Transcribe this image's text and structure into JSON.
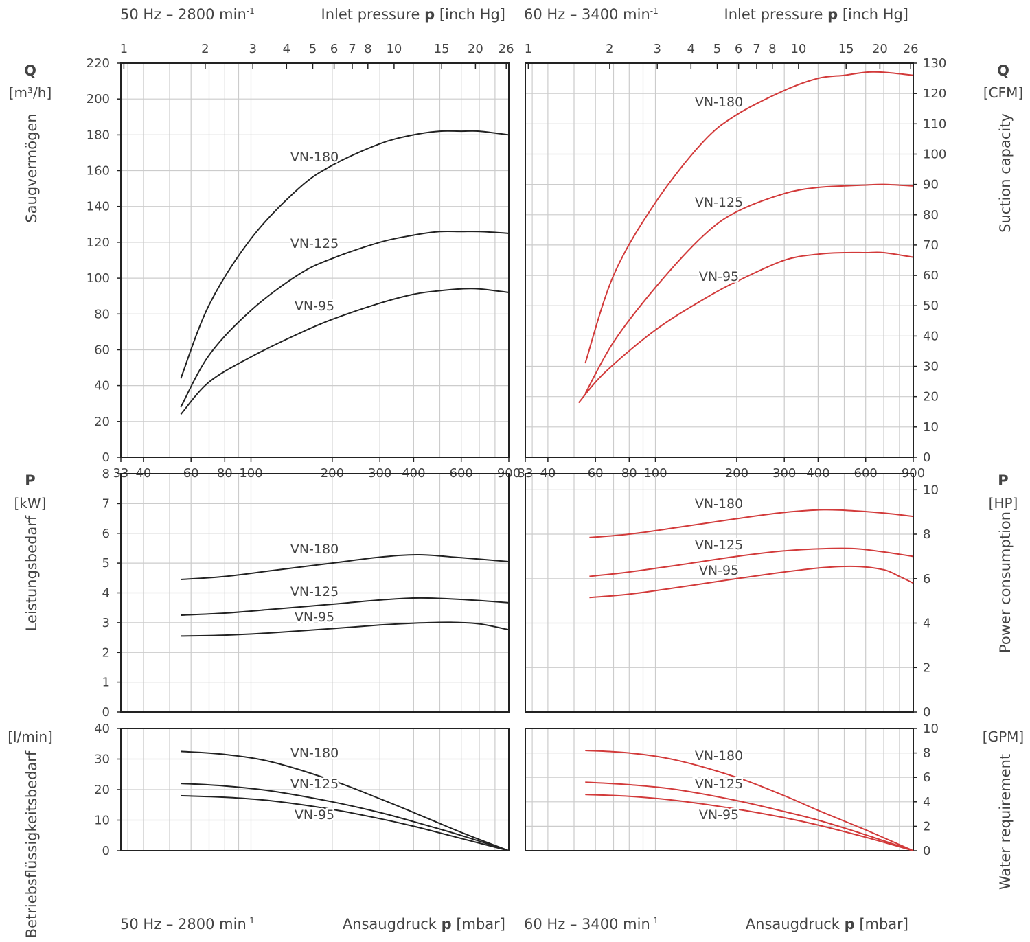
{
  "header": {
    "left_freq_main": "50 Hz – 2800 min",
    "left_freq_sup": "-1",
    "right_freq_main": "60 Hz – 3400 min",
    "right_freq_sup": "-1",
    "inlet_pressure_prefix": "Inlet pressure ",
    "inlet_pressure_symbol": "p",
    "inlet_pressure_unit": " [inch Hg]"
  },
  "footer": {
    "left_freq_main": "50 Hz – 2800 min",
    "left_freq_sup": "-1",
    "right_freq_main": "60 Hz – 3400 min",
    "right_freq_sup": "-1",
    "ansaug_prefix": "Ansaugdruck ",
    "ansaug_symbol": "p",
    "ansaug_unit": " [mbar]"
  },
  "left_axis_labels": {
    "q_symbol": "Q",
    "q_unit": "[m³/h]",
    "q_name": "Saugvermögen",
    "p_symbol": "P",
    "p_unit": "[kW]",
    "p_name": "Leistungsbedarf",
    "w_unit": "[l/min]",
    "w_name": "Betriebsflüssigkeitsbedarf"
  },
  "right_axis_labels": {
    "q_symbol": "Q",
    "q_unit": "[CFM]",
    "q_name": "Suction capacity",
    "p_symbol": "P",
    "p_unit": "[HP]",
    "p_name": "Power consumption",
    "w_unit": "[GPM]",
    "w_name": "Water requirement"
  },
  "colors": {
    "left_curves": "#222222",
    "right_curves": "#d23a3a",
    "grid": "#cccccc",
    "frame": "#222222",
    "text": "#444444"
  },
  "chart_data": [
    {
      "type": "line",
      "panel": "suction-capacity-50hz",
      "x_scale": "log",
      "x_unit": "mbar",
      "xlim": [
        33,
        900
      ],
      "top_axis_inchHg": [
        "1",
        "2",
        "3",
        "4",
        "5",
        "6",
        "7",
        "8",
        "10",
        "15",
        "20",
        "26"
      ],
      "bottom_axis_mbar": [
        "33",
        "40",
        "60",
        "80",
        "100",
        "200",
        "300",
        "400",
        "600",
        "900"
      ],
      "ylim": [
        0,
        220
      ],
      "yticks": [
        0,
        20,
        40,
        60,
        80,
        100,
        120,
        140,
        160,
        180,
        200,
        220
      ],
      "series": [
        {
          "name": "VN-180",
          "x": [
            55,
            70,
            100,
            150,
            200,
            300,
            400,
            500,
            600,
            700,
            900
          ],
          "y": [
            44,
            85,
            122,
            150,
            163,
            175,
            180,
            182,
            182,
            182,
            180
          ]
        },
        {
          "name": "VN-125",
          "x": [
            55,
            70,
            100,
            150,
            200,
            300,
            400,
            500,
            600,
            700,
            900
          ],
          "y": [
            28,
            57,
            82,
            102,
            111,
            120,
            124,
            126,
            126,
            126,
            125
          ]
        },
        {
          "name": "VN-95",
          "x": [
            55,
            70,
            100,
            150,
            200,
            300,
            400,
            500,
            600,
            700,
            900
          ],
          "y": [
            24,
            42,
            56,
            69,
            77,
            86,
            91,
            93,
            94,
            94,
            92
          ]
        }
      ]
    },
    {
      "type": "line",
      "panel": "suction-capacity-60hz",
      "x_scale": "log",
      "x_unit": "mbar",
      "xlim": [
        33,
        900
      ],
      "top_axis_inchHg": [
        "1",
        "2",
        "3",
        "4",
        "5",
        "6",
        "7",
        "8",
        "10",
        "15",
        "20",
        "26"
      ],
      "bottom_axis_mbar": [
        "33",
        "40",
        "60",
        "80",
        "100",
        "200",
        "300",
        "400",
        "600",
        "900"
      ],
      "y_unit": "CFM",
      "ylim": [
        0,
        130
      ],
      "yticks": [
        0,
        10,
        20,
        30,
        40,
        50,
        60,
        70,
        80,
        90,
        100,
        110,
        120,
        130
      ],
      "series": [
        {
          "name": "VN-180",
          "x": [
            55,
            70,
            100,
            150,
            200,
            300,
            400,
            500,
            600,
            700,
            900
          ],
          "y": [
            31,
            60,
            84,
            104,
            113,
            121,
            125,
            126,
            127,
            127,
            126
          ]
        },
        {
          "name": "VN-125",
          "x": [
            55,
            70,
            100,
            150,
            200,
            300,
            400,
            500,
            600,
            700,
            900
          ],
          "y": [
            21,
            38,
            56,
            73,
            81,
            87,
            89,
            89.5,
            89.8,
            90,
            89.5
          ]
        },
        {
          "name": "VN-95",
          "x": [
            52,
            65,
            100,
            150,
            200,
            300,
            400,
            500,
            600,
            700,
            900
          ],
          "y": [
            18,
            28,
            42,
            52,
            58,
            65,
            67,
            67.5,
            67.5,
            67.5,
            66
          ]
        }
      ]
    },
    {
      "type": "line",
      "panel": "power-consumption-50hz",
      "x_scale": "log",
      "x_unit": "mbar",
      "xlim": [
        33,
        900
      ],
      "ylim": [
        0,
        8
      ],
      "yticks": [
        0,
        1,
        2,
        3,
        4,
        5,
        6,
        7,
        8
      ],
      "series": [
        {
          "name": "VN-180",
          "x": [
            55,
            80,
            120,
            200,
            300,
            420,
            600,
            900
          ],
          "y": [
            4.45,
            4.55,
            4.75,
            5.0,
            5.2,
            5.28,
            5.18,
            5.05
          ]
        },
        {
          "name": "VN-125",
          "x": [
            55,
            80,
            120,
            200,
            300,
            420,
            600,
            900
          ],
          "y": [
            3.25,
            3.32,
            3.45,
            3.62,
            3.76,
            3.83,
            3.78,
            3.67
          ]
        },
        {
          "name": "VN-95",
          "x": [
            55,
            80,
            120,
            200,
            300,
            420,
            550,
            700,
            900
          ],
          "y": [
            2.55,
            2.58,
            2.66,
            2.8,
            2.92,
            2.99,
            3.01,
            2.96,
            2.76
          ]
        }
      ]
    },
    {
      "type": "line",
      "panel": "power-consumption-60hz",
      "x_scale": "log",
      "x_unit": "mbar",
      "xlim": [
        33,
        900
      ],
      "y_unit": "HP",
      "ylim": [
        0,
        10.72
      ],
      "yticks": [
        0,
        2,
        4,
        6,
        8,
        10
      ],
      "series": [
        {
          "name": "VN-180",
          "x": [
            57,
            80,
            120,
            200,
            300,
            420,
            550,
            700,
            900
          ],
          "y": [
            7.85,
            8.0,
            8.3,
            8.7,
            8.98,
            9.1,
            9.05,
            8.95,
            8.8
          ]
        },
        {
          "name": "VN-125",
          "x": [
            57,
            80,
            120,
            200,
            300,
            420,
            550,
            700,
            900
          ],
          "y": [
            6.1,
            6.3,
            6.6,
            7.0,
            7.25,
            7.35,
            7.35,
            7.2,
            7.0
          ]
        },
        {
          "name": "VN-95",
          "x": [
            57,
            80,
            120,
            200,
            300,
            420,
            550,
            700,
            800,
            900
          ],
          "y": [
            5.15,
            5.3,
            5.6,
            6.0,
            6.3,
            6.5,
            6.55,
            6.4,
            6.1,
            5.8
          ]
        }
      ]
    },
    {
      "type": "line",
      "panel": "water-requirement-50hz",
      "x_scale": "log",
      "x_unit": "mbar",
      "xlim": [
        33,
        900
      ],
      "ylim": [
        0,
        40
      ],
      "yticks": [
        0,
        10,
        20,
        30,
        40
      ],
      "series": [
        {
          "name": "VN-180",
          "x": [
            55,
            80,
            120,
            200,
            300,
            400,
            600,
            900
          ],
          "y": [
            32.5,
            31.5,
            29,
            23,
            17,
            12.5,
            6,
            0
          ]
        },
        {
          "name": "VN-125",
          "x": [
            55,
            80,
            120,
            200,
            300,
            400,
            600,
            900
          ],
          "y": [
            22,
            21.2,
            19.5,
            16,
            12.5,
            9.5,
            5,
            0
          ]
        },
        {
          "name": "VN-95",
          "x": [
            55,
            80,
            120,
            200,
            300,
            400,
            600,
            900
          ],
          "y": [
            18,
            17.5,
            16.3,
            13.5,
            10.5,
            8,
            4,
            0
          ]
        }
      ]
    },
    {
      "type": "line",
      "panel": "water-requirement-60hz",
      "x_scale": "log",
      "x_unit": "mbar",
      "xlim": [
        33,
        900
      ],
      "y_unit": "GPM",
      "ylim": [
        0,
        10
      ],
      "yticks": [
        0,
        2,
        4,
        6,
        8,
        10
      ],
      "series": [
        {
          "name": "VN-180",
          "x": [
            55,
            80,
            120,
            200,
            300,
            400,
            600,
            900
          ],
          "y": [
            8.2,
            8.0,
            7.4,
            6.0,
            4.5,
            3.3,
            1.7,
            0
          ]
        },
        {
          "name": "VN-125",
          "x": [
            55,
            80,
            120,
            200,
            300,
            400,
            600,
            900
          ],
          "y": [
            5.6,
            5.4,
            5.0,
            4.1,
            3.2,
            2.5,
            1.3,
            0
          ]
        },
        {
          "name": "VN-95",
          "x": [
            55,
            80,
            120,
            200,
            300,
            400,
            600,
            900
          ],
          "y": [
            4.6,
            4.45,
            4.1,
            3.4,
            2.7,
            2.1,
            1.1,
            0
          ]
        }
      ]
    }
  ]
}
